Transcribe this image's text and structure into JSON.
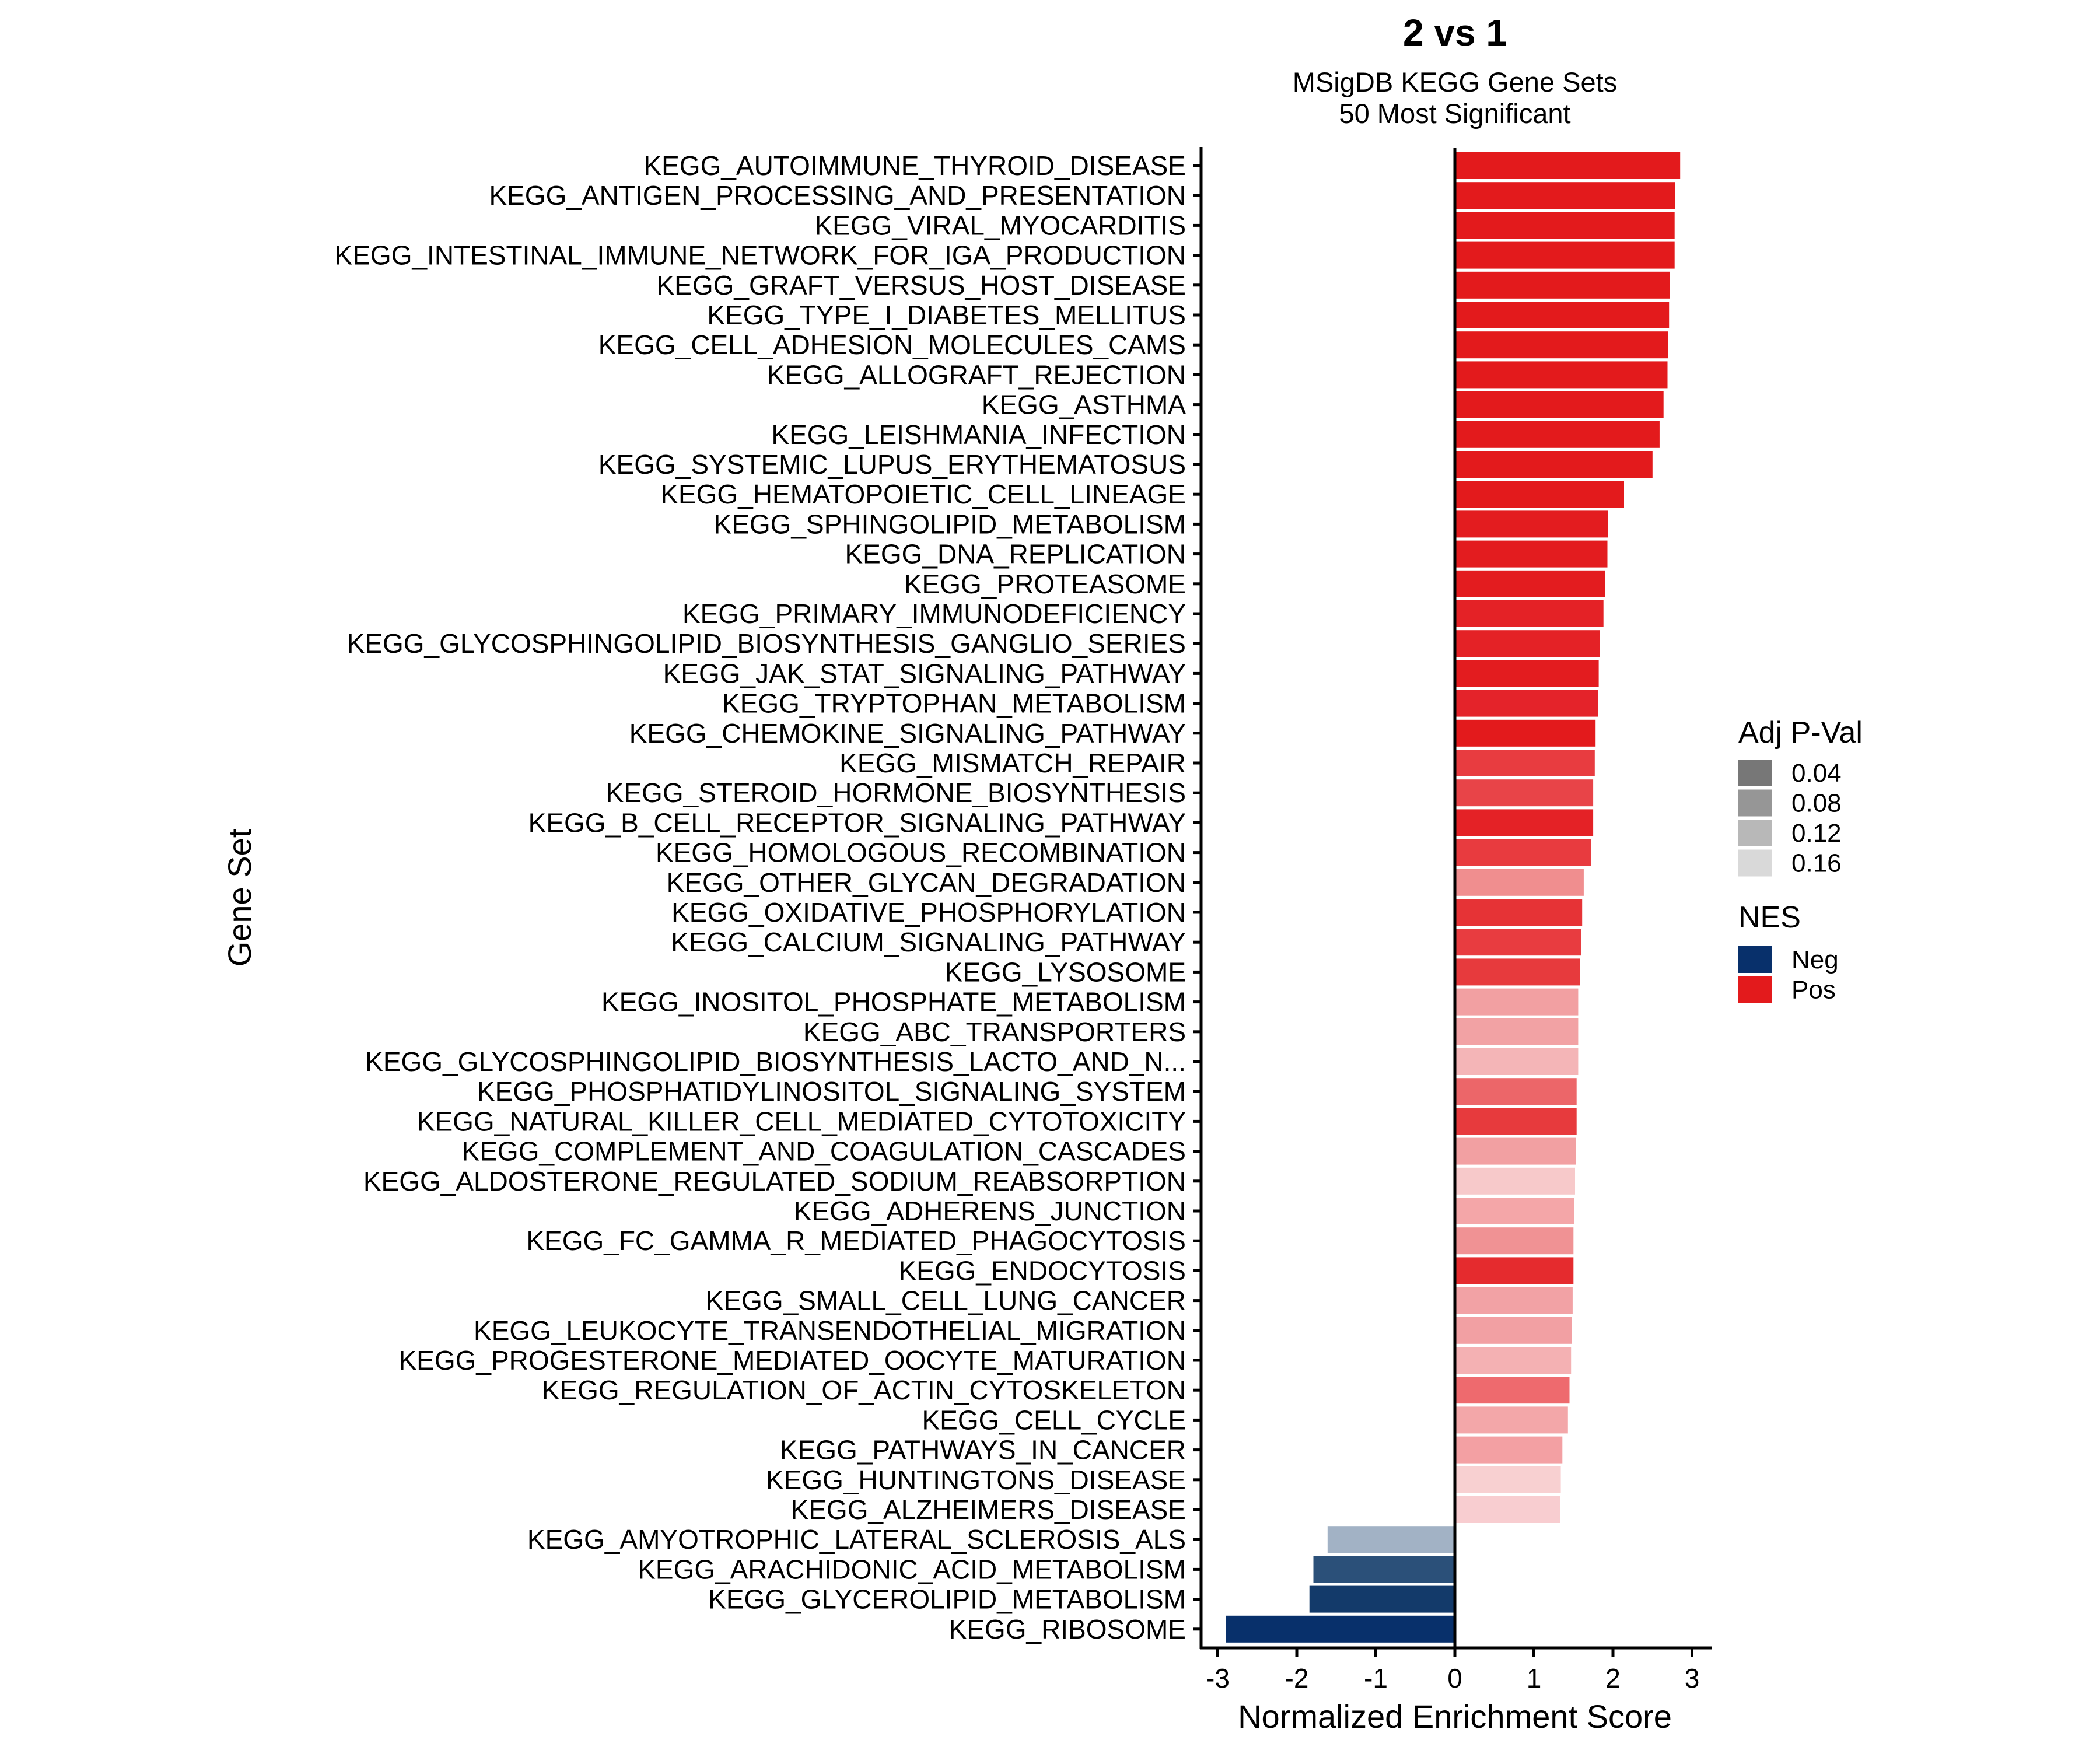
{
  "chart_data": {
    "type": "bar",
    "orientation": "horizontal",
    "title": "2 vs 1",
    "subtitle": [
      "MSigDB KEGG Gene Sets",
      "50 Most Significant"
    ],
    "xlabel": "Normalized Enrichment Score",
    "ylabel": "Gene Set",
    "xlim": [
      -3.2,
      3.2
    ],
    "xticks": [
      -3,
      -2,
      -1,
      0,
      1,
      2,
      3
    ],
    "xtick_labels": [
      "-3",
      "-2",
      "-1",
      "0",
      "1",
      "2",
      "3"
    ],
    "grid": false,
    "categories": [
      "KEGG_AUTOIMMUNE_THYROID_DISEASE",
      "KEGG_ANTIGEN_PROCESSING_AND_PRESENTATION",
      "KEGG_VIRAL_MYOCARDITIS",
      "KEGG_INTESTINAL_IMMUNE_NETWORK_FOR_IGA_PRODUCTION",
      "KEGG_GRAFT_VERSUS_HOST_DISEASE",
      "KEGG_TYPE_I_DIABETES_MELLITUS",
      "KEGG_CELL_ADHESION_MOLECULES_CAMS",
      "KEGG_ALLOGRAFT_REJECTION",
      "KEGG_ASTHMA",
      "KEGG_LEISHMANIA_INFECTION",
      "KEGG_SYSTEMIC_LUPUS_ERYTHEMATOSUS",
      "KEGG_HEMATOPOIETIC_CELL_LINEAGE",
      "KEGG_SPHINGOLIPID_METABOLISM",
      "KEGG_DNA_REPLICATION",
      "KEGG_PROTEASOME",
      "KEGG_PRIMARY_IMMUNODEFICIENCY",
      "KEGG_GLYCOSPHINGOLIPID_BIOSYNTHESIS_GANGLIO_SERIES",
      "KEGG_JAK_STAT_SIGNALING_PATHWAY",
      "KEGG_TRYPTOPHAN_METABOLISM",
      "KEGG_CHEMOKINE_SIGNALING_PATHWAY",
      "KEGG_MISMATCH_REPAIR",
      "KEGG_STEROID_HORMONE_BIOSYNTHESIS",
      "KEGG_B_CELL_RECEPTOR_SIGNALING_PATHWAY",
      "KEGG_HOMOLOGOUS_RECOMBINATION",
      "KEGG_OTHER_GLYCAN_DEGRADATION",
      "KEGG_OXIDATIVE_PHOSPHORYLATION",
      "KEGG_CALCIUM_SIGNALING_PATHWAY",
      "KEGG_LYSOSOME",
      "KEGG_INOSITOL_PHOSPHATE_METABOLISM",
      "KEGG_ABC_TRANSPORTERS",
      "KEGG_GLYCOSPHINGOLIPID_BIOSYNTHESIS_LACTO_AND_N...",
      "KEGG_PHOSPHATIDYLINOSITOL_SIGNALING_SYSTEM",
      "KEGG_NATURAL_KILLER_CELL_MEDIATED_CYTOTOXICITY",
      "KEGG_COMPLEMENT_AND_COAGULATION_CASCADES",
      "KEGG_ALDOSTERONE_REGULATED_SODIUM_REABSORPTION",
      "KEGG_ADHERENS_JUNCTION",
      "KEGG_FC_GAMMA_R_MEDIATED_PHAGOCYTOSIS",
      "KEGG_ENDOCYTOSIS",
      "KEGG_SMALL_CELL_LUNG_CANCER",
      "KEGG_LEUKOCYTE_TRANSENDOTHELIAL_MIGRATION",
      "KEGG_PROGESTERONE_MEDIATED_OOCYTE_MATURATION",
      "KEGG_REGULATION_OF_ACTIN_CYTOSKELETON",
      "KEGG_CELL_CYCLE",
      "KEGG_PATHWAYS_IN_CANCER",
      "KEGG_HUNTINGTONS_DISEASE",
      "KEGG_ALZHEIMERS_DISEASE",
      "KEGG_AMYOTROPHIC_LATERAL_SCLEROSIS_ALS",
      "KEGG_ARACHIDONIC_ACID_METABOLISM",
      "KEGG_GLYCEROLIPID_METABOLISM",
      "KEGG_RIBOSOME"
    ],
    "values": [
      2.85,
      2.79,
      2.78,
      2.78,
      2.72,
      2.71,
      2.7,
      2.69,
      2.64,
      2.59,
      2.5,
      2.14,
      1.94,
      1.93,
      1.9,
      1.88,
      1.83,
      1.82,
      1.81,
      1.78,
      1.77,
      1.75,
      1.75,
      1.72,
      1.63,
      1.61,
      1.6,
      1.58,
      1.56,
      1.56,
      1.56,
      1.54,
      1.54,
      1.53,
      1.52,
      1.51,
      1.5,
      1.5,
      1.49,
      1.48,
      1.47,
      1.45,
      1.43,
      1.36,
      1.34,
      1.33,
      -1.61,
      -1.79,
      -1.84,
      -2.9
    ],
    "bar_colors": [
      "#e31a1c",
      "#e31a1c",
      "#e31a1c",
      "#e31a1c",
      "#e31a1c",
      "#e31a1c",
      "#e31a1c",
      "#e31a1c",
      "#e31a1c",
      "#e31a1c",
      "#e31a1c",
      "#e31a1c",
      "#e31c1f",
      "#e31c1f",
      "#e31c1f",
      "#e42226",
      "#e42226",
      "#e31c1f",
      "#e4232a",
      "#e31a1c",
      "#e83c40",
      "#e84448",
      "#e42226",
      "#e83b3f",
      "#f08e8f",
      "#e63336",
      "#e83c40",
      "#e73a3d",
      "#f2a0a2",
      "#f2a2a4",
      "#f4b5b7",
      "#ec6669",
      "#e73a3d",
      "#f2a0a2",
      "#f7c9ca",
      "#f4a6a8",
      "#f09294",
      "#e52b2e",
      "#f2a2a5",
      "#f2a0a3",
      "#f4b1b3",
      "#ee6a6e",
      "#f3a7a9",
      "#f3a0a3",
      "#f8d0d1",
      "#f8cdd0",
      "#a2b2c5",
      "#2b5079",
      "#133a6a",
      "#08306b"
    ],
    "legends": [
      {
        "title": "Adj P-Val",
        "position": "right",
        "entries": [
          {
            "label": "0.04",
            "color": "#777777"
          },
          {
            "label": "0.08",
            "color": "#969696"
          },
          {
            "label": "0.12",
            "color": "#b8b8b8"
          },
          {
            "label": "0.16",
            "color": "#d9d9d9"
          }
        ]
      },
      {
        "title": "NES",
        "position": "right",
        "entries": [
          {
            "label": "Neg",
            "color": "#08306b"
          },
          {
            "label": "Pos",
            "color": "#e31a1c"
          }
        ]
      }
    ]
  }
}
